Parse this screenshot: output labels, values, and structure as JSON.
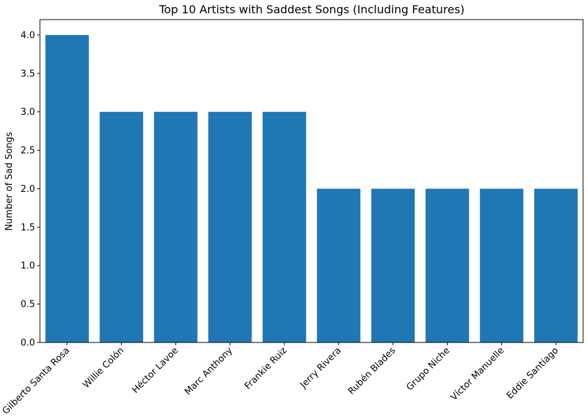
{
  "chart_data": {
    "type": "bar",
    "title": "Top 10 Artists with Saddest Songs (Including Features)",
    "xlabel": "",
    "ylabel": "Number of Sad Songs",
    "categories": [
      "Gilberto Santa Rosa",
      "Willie Colón",
      "Héctor Lavoe",
      "Marc Anthony",
      "Frankie Ruiz",
      "Jerry Rivera",
      "Rubén Blades",
      "Grupo Niche",
      "Víctor Manuelle",
      "Eddie Santiago"
    ],
    "values": [
      4,
      3,
      3,
      3,
      3,
      2,
      2,
      2,
      2,
      2
    ],
    "ylim": [
      0,
      4.2
    ],
    "yticks": [
      "0.0",
      "0.5",
      "1.0",
      "1.5",
      "2.0",
      "2.5",
      "3.0",
      "3.5",
      "4.0"
    ],
    "grid": false,
    "bar_color": "#1f77b4"
  }
}
